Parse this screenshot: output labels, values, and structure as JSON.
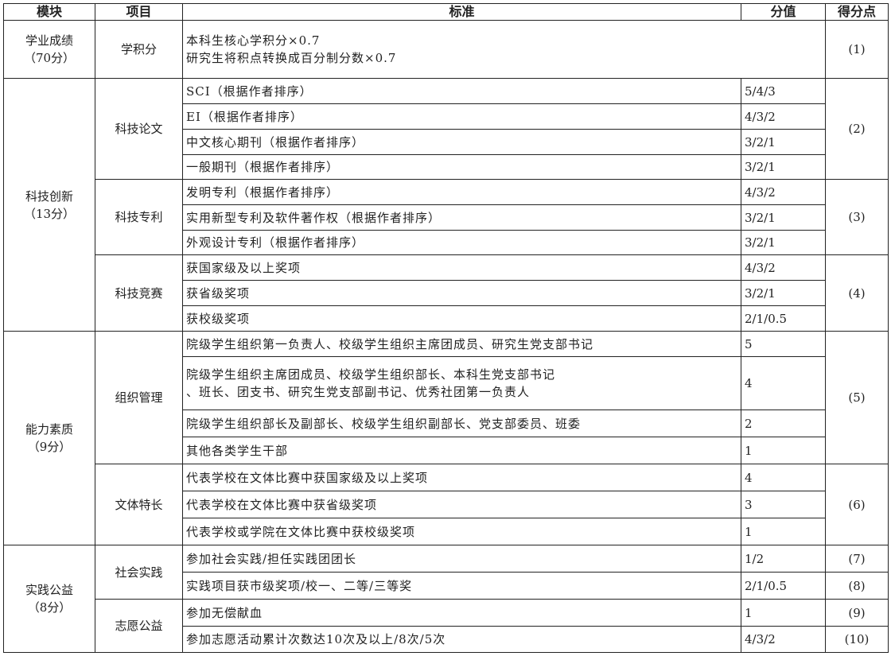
{
  "headers": {
    "module": "模块",
    "item": "项目",
    "criteria": "标准",
    "value": "分值",
    "score": "得分点"
  },
  "modules": [
    {
      "name": "学业成绩",
      "weight": "（70分）",
      "items": [
        {
          "name": "学积分",
          "score": "(1)",
          "merged": true,
          "criteria": [
            {
              "text": "本科生核心学积分×0.7"
            },
            {
              "text": "研究生将积点转换成百分制分数×0.7"
            }
          ]
        }
      ]
    },
    {
      "name": "科技创新",
      "weight": "（13分）",
      "items": [
        {
          "name": "科技论文",
          "score": "(2)",
          "criteria": [
            {
              "text": "SCI（根据作者排序）",
              "value": "5/4/3"
            },
            {
              "text": "EI（根据作者排序）",
              "value": "4/3/2"
            },
            {
              "text": "中文核心期刊（根据作者排序）",
              "value": "3/2/1"
            },
            {
              "text": "一般期刊（根据作者排序）",
              "value": "3/2/1"
            }
          ]
        },
        {
          "name": "科技专利",
          "score": "(3)",
          "criteria": [
            {
              "text": "发明专利（根据作者排序）",
              "value": "4/3/2"
            },
            {
              "text": "实用新型专利及软件著作权（根据作者排序）",
              "value": "3/2/1"
            },
            {
              "text": "外观设计专利（根据作者排序）",
              "value": "3/2/1"
            }
          ]
        },
        {
          "name": "科技竞赛",
          "score": "(4)",
          "criteria": [
            {
              "text": "获国家级及以上奖项",
              "value": "4/3/2"
            },
            {
              "text": "获省级奖项",
              "value": "3/2/1"
            },
            {
              "text": "获校级奖项",
              "value": "2/1/0.5"
            }
          ]
        }
      ]
    },
    {
      "name": "能力素质",
      "weight": "（9分）",
      "items": [
        {
          "name": "组织管理",
          "score": "(5)",
          "criteria": [
            {
              "text": "院级学生组织第一负责人、校级学生组织主席团成员、研究生党支部书记",
              "value": "5"
            },
            {
              "text": "院级学生组织主席团成员、校级学生组织部长、本科生党支部书记\n、班长、团支书、研究生党支部副书记、优秀社团第一负责人",
              "value": "4"
            },
            {
              "text": "院级学生组织部长及副部长、校级学生组织副部长、党支部委员、班委",
              "value": "2"
            },
            {
              "text": "其他各类学生干部",
              "value": "1"
            }
          ]
        },
        {
          "name": "文体特长",
          "score": "(6)",
          "criteria": [
            {
              "text": "代表学校在文体比赛中获国家级及以上奖项",
              "value": "4"
            },
            {
              "text": "代表学校在文体比赛中获省级奖项",
              "value": "3"
            },
            {
              "text": "代表学校或学院在文体比赛中获校级奖项",
              "value": "1"
            }
          ]
        }
      ]
    },
    {
      "name": "实践公益",
      "weight": "（8分）",
      "items": [
        {
          "name": "社会实践",
          "criteria": [
            {
              "text": "参加社会实践/担任实践团团长",
              "value": "1/2",
              "score": "(7)"
            },
            {
              "text": "实践项目获市级奖项/校一、二等/三等奖",
              "value": "2/1/0.5",
              "score": "(8)"
            }
          ]
        },
        {
          "name": "志愿公益",
          "criteria": [
            {
              "text": "参加无偿献血",
              "value": "1",
              "score": "(9)"
            },
            {
              "text": "参加志愿活动累计次数达10次及以上/8次/5次",
              "value": "4/3/2",
              "score": "(10)"
            }
          ]
        }
      ]
    }
  ]
}
